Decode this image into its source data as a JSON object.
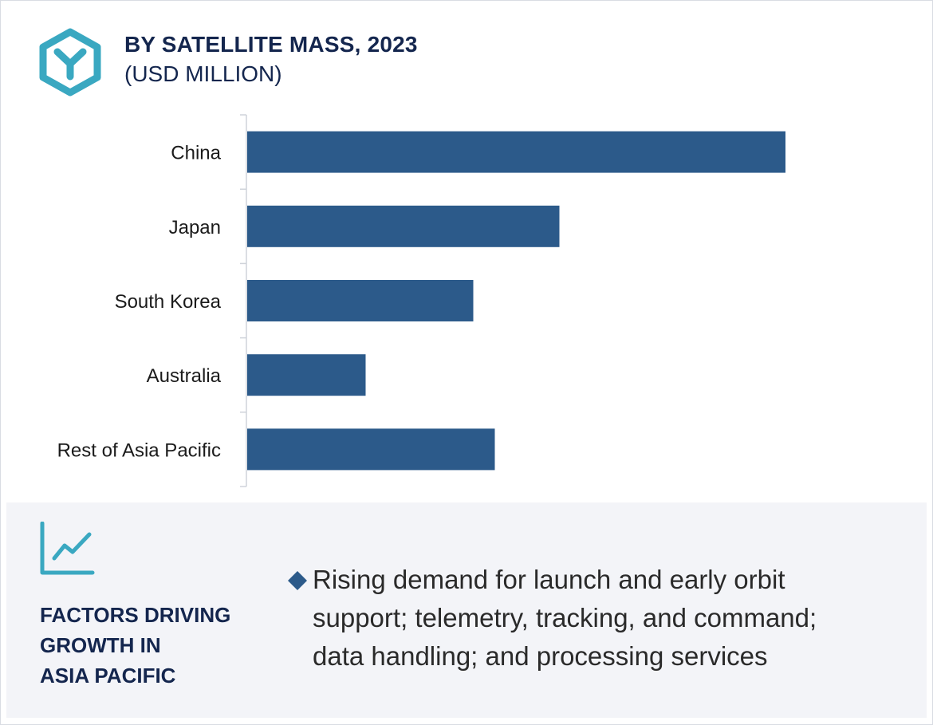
{
  "header": {
    "title": "BY SATELLITE MASS, 2023",
    "subtitle": "(USD MILLION)",
    "logo_icon": "hexagon-y-logo-icon"
  },
  "colors": {
    "bar": "#2c5a8a",
    "accent": "#3aa8c1",
    "heading": "#14264e",
    "panel_bg": "#f3f4f8"
  },
  "chart_data": {
    "type": "bar",
    "orientation": "horizontal",
    "title": "BY SATELLITE MASS, 2023",
    "subtitle": "(USD MILLION)",
    "categories": [
      "China",
      "Japan",
      "South Korea",
      "Australia",
      "Rest of Asia Pacific"
    ],
    "values": [
      100,
      58,
      42,
      22,
      46
    ],
    "xlim": [
      0,
      100
    ],
    "xlabel": "",
    "ylabel": "",
    "grid": false,
    "legend": "none"
  },
  "factors": {
    "icon": "trend-chart-icon",
    "heading_lines": [
      "FACTORS DRIVING",
      "GROWTH IN",
      "ASIA PACIFIC"
    ],
    "bullet_icon": "diamond-bullet-icon",
    "bullet_lines": [
      "Rising demand for launch and early orbit",
      "support; telemetry, tracking, and command;",
      "data handling; and processing services"
    ]
  }
}
